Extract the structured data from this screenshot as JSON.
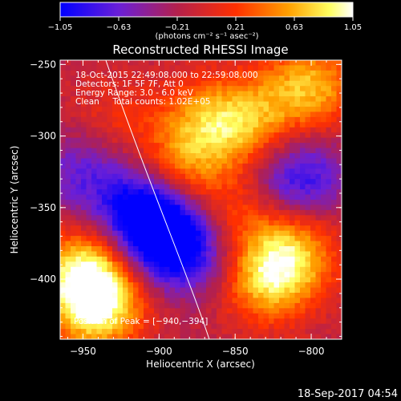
{
  "chart_data": {
    "type": "heatmap",
    "title": "Reconstructed RHESSI Image",
    "xlabel": "Heliocentric X (arcsec)",
    "ylabel": "Heliocentric Y (arcsec)",
    "xlim": [
      -965,
      -780
    ],
    "ylim": [
      -442,
      -247
    ],
    "x_ticks": [
      -950,
      -900,
      -850,
      -800
    ],
    "y_ticks": [
      -250,
      -300,
      -350,
      -400
    ],
    "x_tick_labels": [
      "−950",
      "−900",
      "−850",
      "−800"
    ],
    "y_tick_labels": [
      "−250",
      "−300",
      "−350",
      "−400"
    ],
    "colorbar": {
      "min": -1.05,
      "max": 1.05,
      "ticks": [
        -1.05,
        -0.63,
        -0.21,
        0.21,
        0.63,
        1.05
      ],
      "tick_labels": [
        "−1.05",
        "−0.63",
        "−0.21",
        "0.21",
        "0.63",
        "1.05"
      ],
      "label": "(photons cm⁻² s⁻¹ asec⁻²)"
    },
    "annotations": [
      "18-Oct-2015 22:49:08.000 to 22:59:08.000",
      "Detectors: 1F 5F 7F, Att 0",
      "Energy Range: 3.0 - 6.0 keV",
      "Clean     Total counts: 1.02E+05"
    ],
    "peak_label": "Position of Peak = [−940,−394]",
    "peak_position": [
      -940,
      -394
    ],
    "grid": false,
    "colormap": "blue-purple-red-yellow-white",
    "features": [
      {
        "type": "bright",
        "x": -948,
        "y": -395,
        "value": 1.0
      },
      {
        "type": "bright",
        "x": -940,
        "y": -420,
        "value": 0.95
      },
      {
        "type": "bright",
        "x": -830,
        "y": -400,
        "value": 0.85
      },
      {
        "type": "bright",
        "x": -812,
        "y": -380,
        "value": 0.7
      },
      {
        "type": "bright",
        "x": -870,
        "y": -290,
        "value": 0.6
      },
      {
        "type": "bright",
        "x": -840,
        "y": -290,
        "value": 0.65
      },
      {
        "type": "bright",
        "x": -800,
        "y": -265,
        "value": 0.8
      },
      {
        "type": "bright",
        "x": -852,
        "y": -360,
        "value": 0.5
      },
      {
        "type": "bright",
        "x": -885,
        "y": -325,
        "value": 0.6
      },
      {
        "type": "bright",
        "x": -930,
        "y": -290,
        "value": 0.3
      },
      {
        "type": "dim",
        "x": -910,
        "y": -350,
        "value": -0.7
      },
      {
        "type": "dim",
        "x": -900,
        "y": -365,
        "value": -0.8
      },
      {
        "type": "dim",
        "x": -890,
        "y": -380,
        "value": -0.6
      },
      {
        "type": "dim",
        "x": -808,
        "y": -330,
        "value": -0.75
      },
      {
        "type": "dim",
        "x": -950,
        "y": -325,
        "value": -0.5
      },
      {
        "type": "dim",
        "x": -860,
        "y": -380,
        "value": -0.4
      }
    ],
    "limb_curve": [
      [
        -935,
        -247
      ],
      [
        -908,
        -330
      ],
      [
        -880,
        -400
      ],
      [
        -867,
        -442
      ]
    ]
  },
  "footer": {
    "timestamp": "18-Sep-2017 04:54"
  },
  "colors": {
    "background": "#000000",
    "text": "#ffffff"
  }
}
